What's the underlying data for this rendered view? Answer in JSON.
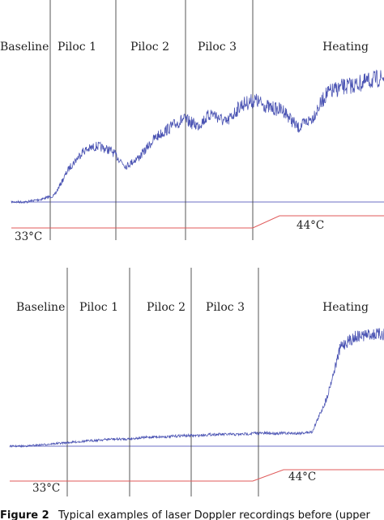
{
  "chart_data": [
    {
      "type": "line",
      "title": "",
      "xlabel": "",
      "ylabel": "",
      "grid": false,
      "segments": [
        "Baseline",
        "Piloc 1",
        "Piloc 2",
        "Piloc 3",
        "Heating"
      ],
      "temperature_labels": [
        "33°C",
        "44°C"
      ],
      "series": [
        {
          "name": "",
          "color": "#4a53b3",
          "values": [
            0,
            0,
            0.02,
            0.05,
            0.26,
            0.4,
            0.44,
            0.4,
            0.28,
            0.36,
            0.5,
            0.58,
            0.65,
            0.6,
            0.7,
            0.62,
            0.76,
            0.8,
            0.74,
            0.72,
            0.58,
            0.66,
            0.85,
            0.9,
            0.92,
            0.95,
            0.98
          ]
        }
      ],
      "temperature_trace": {
        "values": [
          0,
          0,
          0,
          0,
          0,
          0,
          0,
          0,
          0,
          0,
          0,
          0,
          0,
          0,
          0,
          0,
          0,
          0,
          0,
          0,
          0,
          0,
          1,
          1,
          1,
          1,
          1
        ]
      }
    },
    {
      "type": "line",
      "title": "",
      "xlabel": "",
      "ylabel": "",
      "grid": false,
      "segments": [
        "Baseline",
        "Piloc 1",
        "Piloc 2",
        "Piloc 3",
        "Heating"
      ],
      "temperature_labels": [
        "33°C",
        "44°C"
      ],
      "series": [
        {
          "name": "",
          "color": "#4a53b3",
          "values": [
            0,
            0,
            0.01,
            0.02,
            0.03,
            0.04,
            0.05,
            0.06,
            0.06,
            0.07,
            0.08,
            0.08,
            0.09,
            0.09,
            0.1,
            0.1,
            0.1,
            0.11,
            0.11,
            0.11,
            0.11,
            0.12,
            0.4,
            0.85,
            0.93,
            0.95,
            0.95
          ]
        }
      ],
      "temperature_trace": {
        "values": [
          0,
          0,
          0,
          0,
          0,
          0,
          0,
          0,
          0,
          0,
          0,
          0,
          0,
          0,
          0,
          0,
          0,
          0,
          0,
          0,
          0,
          0,
          1,
          1,
          1,
          1,
          1
        ]
      }
    }
  ],
  "caption": {
    "label": "Figure 2",
    "text": "Typical examples of laser Doppler recordings before (upper"
  }
}
